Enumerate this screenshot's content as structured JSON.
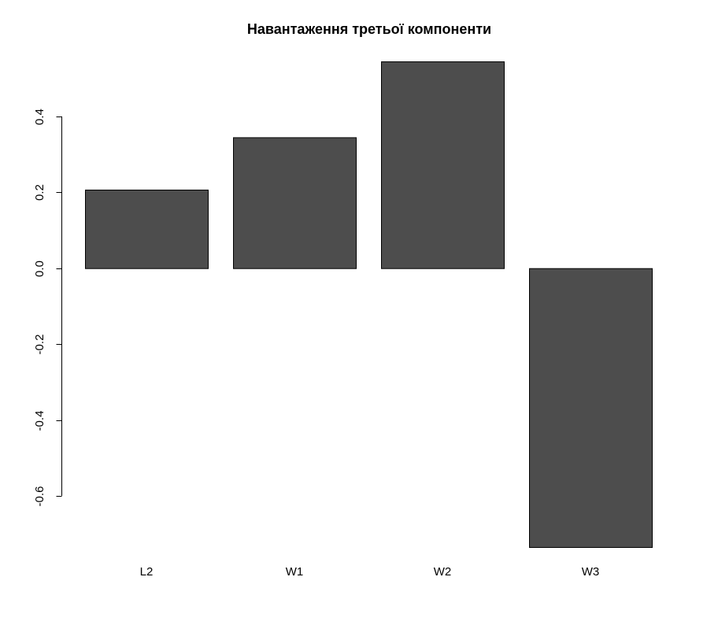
{
  "chart_data": {
    "type": "bar",
    "title": "Навантаження третьої компоненти",
    "categories": [
      "L2",
      "W1",
      "W2",
      "W3"
    ],
    "values": [
      0.207,
      0.345,
      0.545,
      -0.735
    ],
    "ylim": [
      -0.735,
      0.545
    ],
    "yticks": [
      -0.6,
      -0.4,
      -0.2,
      0.0,
      0.2,
      0.4
    ],
    "ytick_labels": [
      "-0.6",
      "-0.4",
      "-0.2",
      "0.0",
      "0.2",
      "0.4"
    ],
    "bar_color": "#4d4d4d",
    "grid": false
  }
}
